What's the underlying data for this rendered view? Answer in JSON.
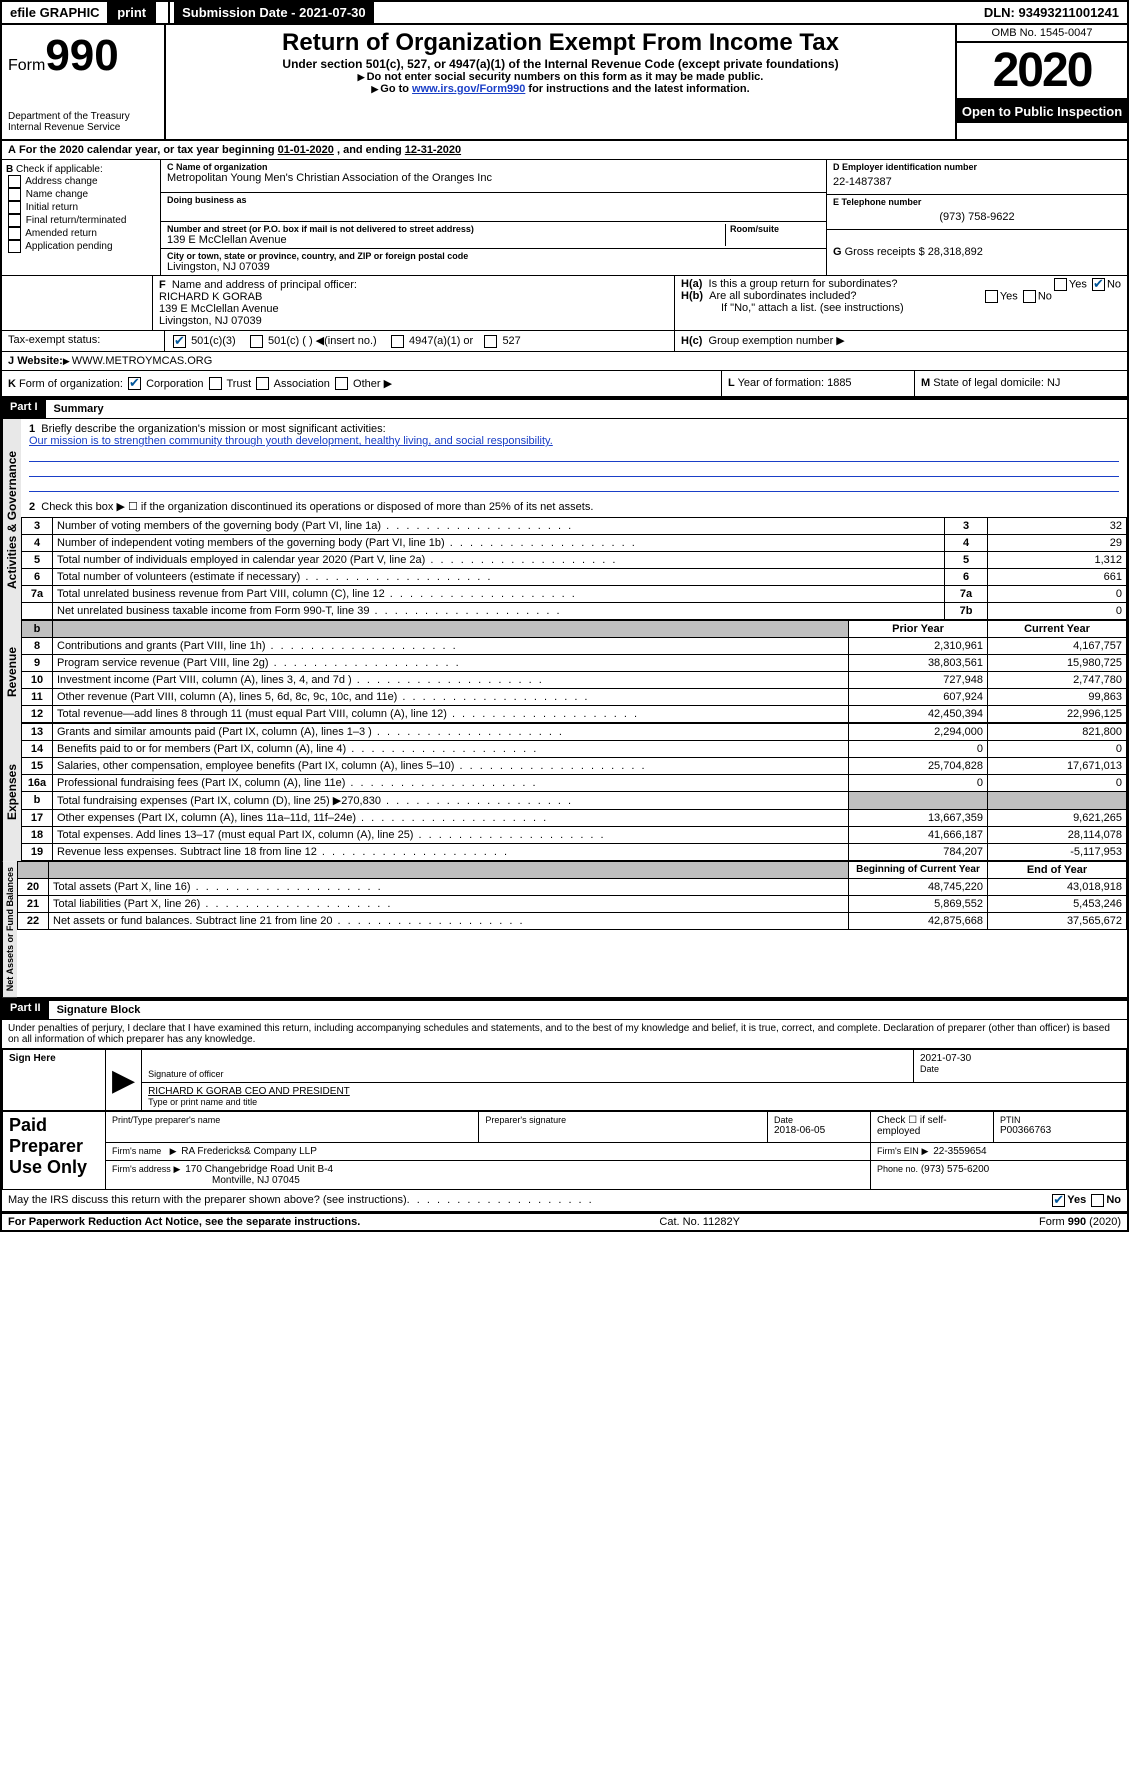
{
  "topbar": {
    "efile": "efile GRAPHIC",
    "print": "print",
    "submission_label": "Submission Date - 2021-07-30",
    "dln_label": "DLN: 93493211001241"
  },
  "header": {
    "form_prefix": "Form",
    "form_number": "990",
    "dept": "Department of the Treasury\nInternal Revenue Service",
    "title": "Return of Organization Exempt From Income Tax",
    "subtitle": "Under section 501(c), 527, or 4947(a)(1) of the Internal Revenue Code (except private foundations)",
    "hint1": "Do not enter social security numbers on this form as it may be made public.",
    "hint2_pre": "Go to ",
    "hint2_link": "www.irs.gov/Form990",
    "hint2_post": " for instructions and the latest information.",
    "omb": "OMB No. 1545-0047",
    "year": "2020",
    "open": "Open to Public Inspection"
  },
  "period": {
    "text_pre": "For the 2020 calendar year, or tax year beginning ",
    "begin": "01-01-2020",
    "text_mid": " , and ending ",
    "end": "12-31-2020"
  },
  "sectionB": {
    "label": "Check if applicable:",
    "opts": [
      "Address change",
      "Name change",
      "Initial return",
      "Final return/terminated",
      "Amended return",
      "Application pending"
    ]
  },
  "sectionC": {
    "name_lbl": "Name of organization",
    "name": "Metropolitan Young Men's Christian Association of the Oranges Inc",
    "dba_lbl": "Doing business as",
    "addr_lbl": "Number and street (or P.O. box if mail is not delivered to street address)",
    "room_lbl": "Room/suite",
    "addr": "139 E McClellan Avenue",
    "city_lbl": "City or town, state or province, country, and ZIP or foreign postal code",
    "city": "Livingston, NJ  07039"
  },
  "sectionD": {
    "lbl": "Employer identification number",
    "val": "22-1487387"
  },
  "sectionE": {
    "lbl": "Telephone number",
    "val": "(973) 758-9622"
  },
  "sectionG": {
    "lbl": "Gross receipts $",
    "val": "28,318,892"
  },
  "sectionF": {
    "lbl": "Name and address of principal officer:",
    "name": "RICHARD K GORAB",
    "addr1": "139 E McClellan Avenue",
    "addr2": "Livingston, NJ  07039"
  },
  "sectionH": {
    "a": "Is this a group return for subordinates?",
    "b": "Are all subordinates included?",
    "b_hint": "If \"No,\" attach a list. (see instructions)",
    "c": "Group exemption number",
    "yes": "Yes",
    "no": "No"
  },
  "sectionI": {
    "lbl": "Tax-exempt status:",
    "c1": "501(c)(3)",
    "c2": "501(c) (   )",
    "c2b": "(insert no.)",
    "c3": "4947(a)(1) or",
    "c4": "527"
  },
  "sectionJ": {
    "lbl": "Website:",
    "val": "WWW.METROYMCAS.ORG"
  },
  "sectionK": {
    "lbl": "Form of organization:",
    "c1": "Corporation",
    "c2": "Trust",
    "c3": "Association",
    "c4": "Other"
  },
  "sectionL": {
    "lbl": "Year of formation:",
    "val": "1885"
  },
  "sectionM": {
    "lbl": "State of legal domicile:",
    "val": "NJ"
  },
  "part1": {
    "num": "Part I",
    "title": "Summary",
    "l1_lbl": "Briefly describe the organization's mission or most significant activities:",
    "l1_val": "Our mission is to strengthen community through youth development, healthy living, and social responsibility.",
    "l2": "Check this box ▶ ☐  if the organization discontinued its operations or disposed of more than 25% of its net assets.",
    "rows_gov": [
      {
        "n": "3",
        "t": "Number of voting members of the governing body (Part VI, line 1a)",
        "c": "3",
        "v": "32"
      },
      {
        "n": "4",
        "t": "Number of independent voting members of the governing body (Part VI, line 1b)",
        "c": "4",
        "v": "29"
      },
      {
        "n": "5",
        "t": "Total number of individuals employed in calendar year 2020 (Part V, line 2a)",
        "c": "5",
        "v": "1,312"
      },
      {
        "n": "6",
        "t": "Total number of volunteers (estimate if necessary)",
        "c": "6",
        "v": "661"
      },
      {
        "n": "7a",
        "t": "Total unrelated business revenue from Part VIII, column (C), line 12",
        "c": "7a",
        "v": "0"
      },
      {
        "n": "",
        "t": "Net unrelated business taxable income from Form 990-T, line 39",
        "c": "7b",
        "v": "0"
      }
    ],
    "hdr_prior": "Prior Year",
    "hdr_current": "Current Year",
    "rows_rev": [
      {
        "n": "8",
        "t": "Contributions and grants (Part VIII, line 1h)",
        "p": "2,310,961",
        "c": "4,167,757"
      },
      {
        "n": "9",
        "t": "Program service revenue (Part VIII, line 2g)",
        "p": "38,803,561",
        "c": "15,980,725"
      },
      {
        "n": "10",
        "t": "Investment income (Part VIII, column (A), lines 3, 4, and 7d )",
        "p": "727,948",
        "c": "2,747,780"
      },
      {
        "n": "11",
        "t": "Other revenue (Part VIII, column (A), lines 5, 6d, 8c, 9c, 10c, and 11e)",
        "p": "607,924",
        "c": "99,863"
      },
      {
        "n": "12",
        "t": "Total revenue—add lines 8 through 11 (must equal Part VIII, column (A), line 12)",
        "p": "42,450,394",
        "c": "22,996,125"
      }
    ],
    "rows_exp": [
      {
        "n": "13",
        "t": "Grants and similar amounts paid (Part IX, column (A), lines 1–3 )",
        "p": "2,294,000",
        "c": "821,800"
      },
      {
        "n": "14",
        "t": "Benefits paid to or for members (Part IX, column (A), line 4)",
        "p": "0",
        "c": "0"
      },
      {
        "n": "15",
        "t": "Salaries, other compensation, employee benefits (Part IX, column (A), lines 5–10)",
        "p": "25,704,828",
        "c": "17,671,013"
      },
      {
        "n": "16a",
        "t": "Professional fundraising fees (Part IX, column (A), line 11e)",
        "p": "0",
        "c": "0"
      },
      {
        "n": "b",
        "t": "Total fundraising expenses (Part IX, column (D), line 25) ▶270,830",
        "p": "shaded",
        "c": "shaded"
      },
      {
        "n": "17",
        "t": "Other expenses (Part IX, column (A), lines 11a–11d, 11f–24e)",
        "p": "13,667,359",
        "c": "9,621,265"
      },
      {
        "n": "18",
        "t": "Total expenses. Add lines 13–17 (must equal Part IX, column (A), line 25)",
        "p": "41,666,187",
        "c": "28,114,078"
      },
      {
        "n": "19",
        "t": "Revenue less expenses. Subtract line 18 from line 12",
        "p": "784,207",
        "c": "-5,117,953"
      }
    ],
    "hdr_begin": "Beginning of Current Year",
    "hdr_end": "End of Year",
    "rows_na": [
      {
        "n": "20",
        "t": "Total assets (Part X, line 16)",
        "p": "48,745,220",
        "c": "43,018,918"
      },
      {
        "n": "21",
        "t": "Total liabilities (Part X, line 26)",
        "p": "5,869,552",
        "c": "5,453,246"
      },
      {
        "n": "22",
        "t": "Net assets or fund balances. Subtract line 21 from line 20",
        "p": "42,875,668",
        "c": "37,565,672"
      }
    ],
    "vtab_gov": "Activities & Governance",
    "vtab_rev": "Revenue",
    "vtab_exp": "Expenses",
    "vtab_na": "Net Assets or Fund Balances"
  },
  "part2": {
    "num": "Part II",
    "title": "Signature Block",
    "decl": "Under penalties of perjury, I declare that I have examined this return, including accompanying schedules and statements, and to the best of my knowledge and belief, it is true, correct, and complete. Declaration of preparer (other than officer) is based on all information of which preparer has any knowledge.",
    "sign_here": "Sign Here",
    "sig_officer_lbl": "Signature of officer",
    "sig_date": "2021-07-30",
    "date_lbl": "Date",
    "officer_name": "RICHARD K GORAB CEO AND PRESIDENT",
    "officer_lbl": "Type or print name and title",
    "paid": "Paid Preparer Use Only",
    "prep_name_lbl": "Print/Type preparer's name",
    "prep_sig_lbl": "Preparer's signature",
    "prep_date_lbl": "Date",
    "prep_date": "2018-06-05",
    "self_emp": "Check ☐ if self-employed",
    "ptin_lbl": "PTIN",
    "ptin": "P00366763",
    "firm_name_lbl": "Firm's name",
    "firm_name": "RA Fredericks& Company LLP",
    "firm_ein_lbl": "Firm's EIN",
    "firm_ein": "22-3559654",
    "firm_addr_lbl": "Firm's address",
    "firm_addr1": "170 Changebridge Road Unit B-4",
    "firm_addr2": "Montville, NJ  07045",
    "phone_lbl": "Phone no.",
    "phone": "(973) 575-6200",
    "discuss": "May the IRS discuss this return with the preparer shown above? (see instructions)",
    "yes": "Yes",
    "no": "No"
  },
  "footer": {
    "pra": "For Paperwork Reduction Act Notice, see the separate instructions.",
    "cat": "Cat. No. 11282Y",
    "form": "Form 990 (2020)"
  },
  "labels": {
    "A": "A",
    "B": "B",
    "C": "C",
    "D": "D",
    "E": "E",
    "F": "F",
    "G": "G",
    "H_a": "H(a)",
    "H_b": "H(b)",
    "H_c": "H(c)",
    "I": "I",
    "J": "J",
    "K": "K",
    "L": "L",
    "M": "M",
    "1": "1",
    "2": "2",
    "b": "b"
  },
  "colors": {
    "link": "#1a3fc7",
    "shade": "#bfbfbf"
  }
}
